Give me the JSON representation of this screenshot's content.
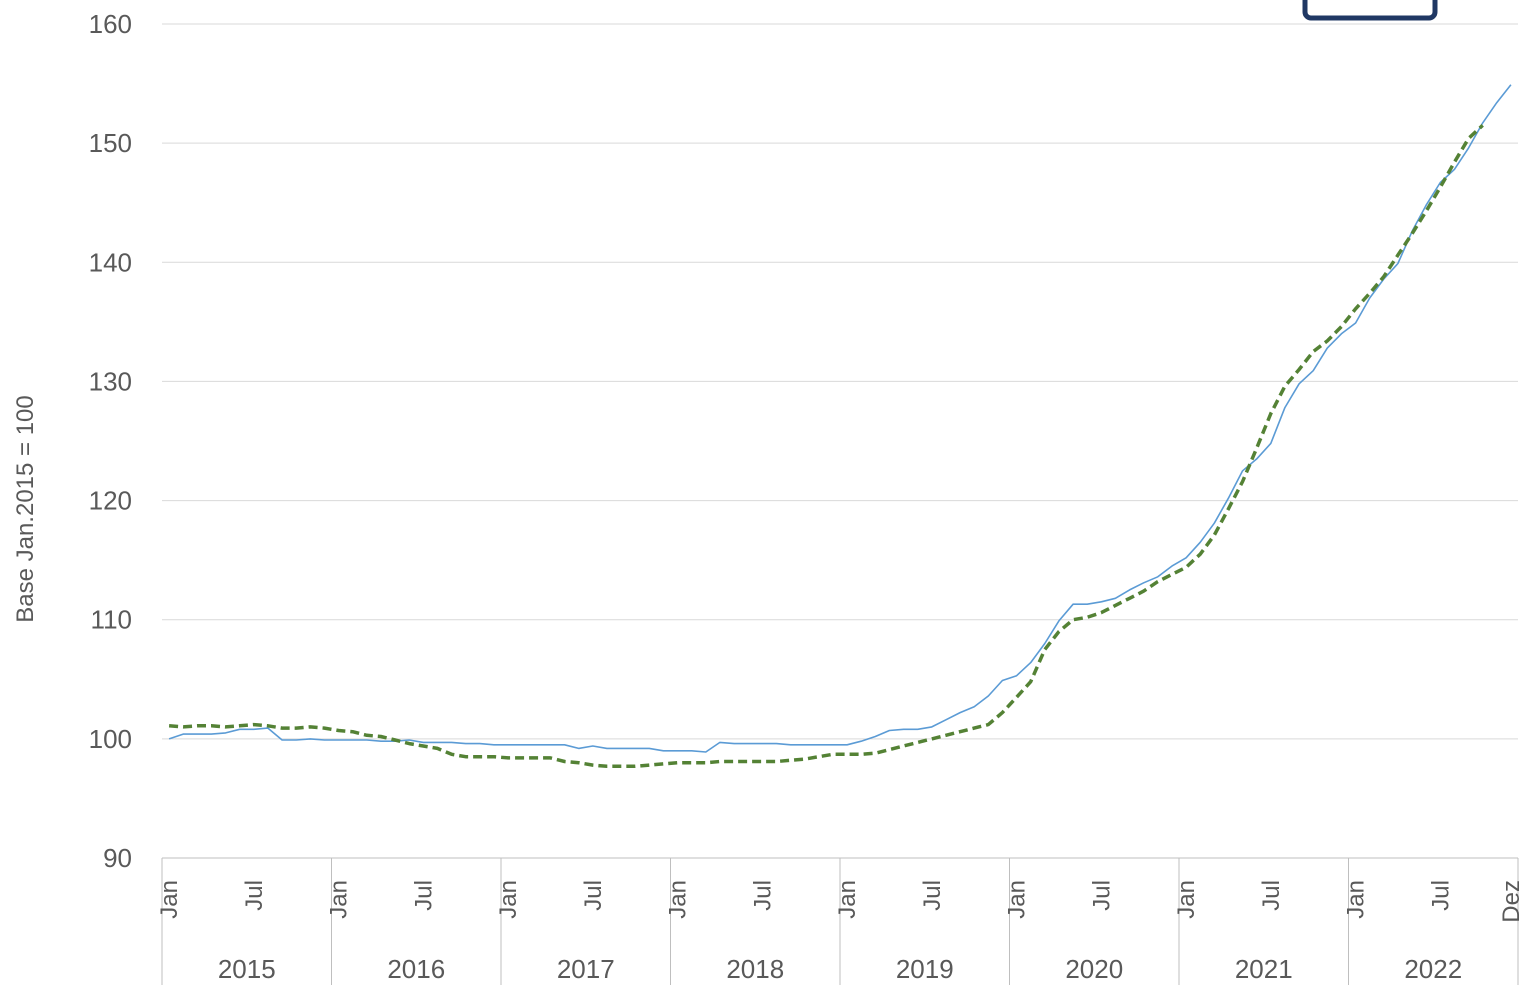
{
  "chart_data": {
    "type": "line",
    "title": "",
    "ylabel": "Base Jan.2015 = 100",
    "xlabel": "",
    "ylim": [
      90,
      160
    ],
    "yticks": [
      90,
      100,
      110,
      120,
      130,
      140,
      150,
      160
    ],
    "grid": true,
    "x_start": "2015-01",
    "month_tick_labels": [
      "Jan",
      "Jul"
    ],
    "last_month_label": "Dez",
    "years": [
      "2015",
      "2016",
      "2017",
      "2018",
      "2019",
      "2020",
      "2021",
      "2022"
    ],
    "series": [
      {
        "color": "#5b9bd5",
        "style": "solid",
        "values": [
          100.0,
          100.4,
          100.4,
          100.4,
          100.5,
          100.8,
          100.8,
          100.9,
          99.9,
          99.9,
          100.0,
          99.9,
          99.9,
          99.9,
          99.9,
          99.8,
          99.8,
          99.9,
          99.7,
          99.7,
          99.7,
          99.6,
          99.6,
          99.5,
          99.5,
          99.5,
          99.5,
          99.5,
          99.5,
          99.2,
          99.4,
          99.2,
          99.2,
          99.2,
          99.2,
          99.0,
          99.0,
          99.0,
          98.9,
          99.7,
          99.6,
          99.6,
          99.6,
          99.6,
          99.5,
          99.5,
          99.5,
          99.5,
          99.5,
          99.8,
          100.2,
          100.7,
          100.8,
          100.8,
          101.0,
          101.6,
          102.2,
          102.7,
          103.6,
          104.9,
          105.3,
          106.4,
          108.0,
          109.9,
          111.3,
          111.3,
          111.5,
          111.8,
          112.5,
          113.1,
          113.6,
          114.5,
          115.2,
          116.5,
          118.1,
          120.2,
          122.5,
          123.5,
          124.8,
          127.8,
          129.8,
          130.9,
          132.8,
          134.0,
          134.9,
          137.0,
          138.6,
          139.9,
          142.6,
          144.8,
          146.7,
          147.8,
          149.6,
          151.7,
          153.4,
          154.9
        ]
      },
      {
        "color": "#548235",
        "style": "dashed",
        "values": [
          101.1,
          101.0,
          101.1,
          101.1,
          101.0,
          101.1,
          101.2,
          101.1,
          100.9,
          100.9,
          101.0,
          100.9,
          100.7,
          100.6,
          100.3,
          100.2,
          99.9,
          99.6,
          99.4,
          99.2,
          98.7,
          98.5,
          98.5,
          98.5,
          98.4,
          98.4,
          98.4,
          98.4,
          98.1,
          98.0,
          97.8,
          97.7,
          97.7,
          97.7,
          97.8,
          97.9,
          98.0,
          98.0,
          98.0,
          98.1,
          98.1,
          98.1,
          98.1,
          98.1,
          98.2,
          98.3,
          98.5,
          98.7,
          98.7,
          98.7,
          98.8,
          99.1,
          99.4,
          99.7,
          100.0,
          100.3,
          100.6,
          100.9,
          101.2,
          102.2,
          103.5,
          104.8,
          107.5,
          109.0,
          110.0,
          110.2,
          110.6,
          111.2,
          111.8,
          112.4,
          113.2,
          113.8,
          114.4,
          115.5,
          117.1,
          119.3,
          121.6,
          124.4,
          127.3,
          129.6,
          131.0,
          132.5,
          133.4,
          134.6,
          136.1,
          137.4,
          138.8,
          140.6,
          142.4,
          144.3,
          146.3,
          148.4,
          150.4,
          151.5
        ]
      }
    ]
  }
}
